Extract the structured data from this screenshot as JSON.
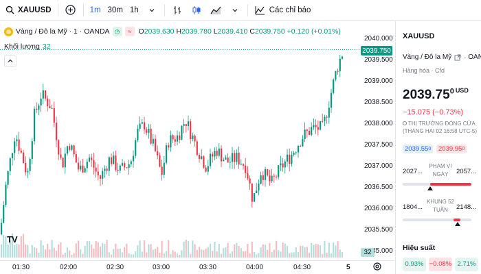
{
  "toolbar": {
    "symbol": "XAUUSD",
    "intervals": [
      "1m",
      "30m",
      "1h"
    ],
    "active_interval": "1m",
    "indicators_label": "Các chỉ báo"
  },
  "legend": {
    "title": "Vàng / Đô la Mỹ · 1 · OANDA",
    "open_label": "O",
    "open": "2039.630",
    "high_label": "H",
    "high": "2039.780",
    "low_label": "L",
    "low": "2039.410",
    "close_label": "C",
    "close": "2039.750",
    "change": "+0.120 (+0.01%)",
    "volume_label": "Khối lượng",
    "volume": "32"
  },
  "price_axis": [
    "2040.000",
    "2039.500",
    "2039.000",
    "2038.500",
    "2038.000",
    "2037.500",
    "2037.000",
    "2036.500",
    "2036.000",
    "2035.500",
    "2035.000"
  ],
  "last_price_tag": "2039.750",
  "volume_tag": "32",
  "time_axis": [
    "01:30",
    "02:00",
    "02:30",
    "03:00",
    "03:30",
    "04:00",
    "04:30",
    "5"
  ],
  "panel": {
    "symbol": "XAUUSD",
    "name": "Vàng / Đô la Mỹ",
    "exchange": "OANDA",
    "category": "Hàng hóa · Cfd",
    "price_main": "2039.75",
    "price_sup": "0",
    "currency": "USD",
    "change": "−15.075 (−0.73%)",
    "status_line1": "THỊ TRƯỜNG ĐÓNG CỬA",
    "status_line2": "(THÁNG HAI 02 16:58 UTC-5)",
    "bid": "2039.55",
    "bid_sup": "0",
    "ask": "2039.95",
    "ask_sup": "0",
    "day_low": "2027...",
    "day_high": "2057...",
    "day_label1": "PHẠM VI",
    "day_label2": "NGÀY",
    "day_position": 0.4,
    "wk_low": "1804...",
    "wk_high": "2148...",
    "wk_label1": "KHUNG 52",
    "wk_label2": "TUẦN",
    "wk_position": 0.74,
    "perf_title": "Hiệu suất",
    "perf": [
      "0.93%",
      "−0.08%",
      "2.71%"
    ]
  },
  "colors": {
    "up": "#089981",
    "down": "#f23645",
    "accent": "#2962ff"
  }
}
